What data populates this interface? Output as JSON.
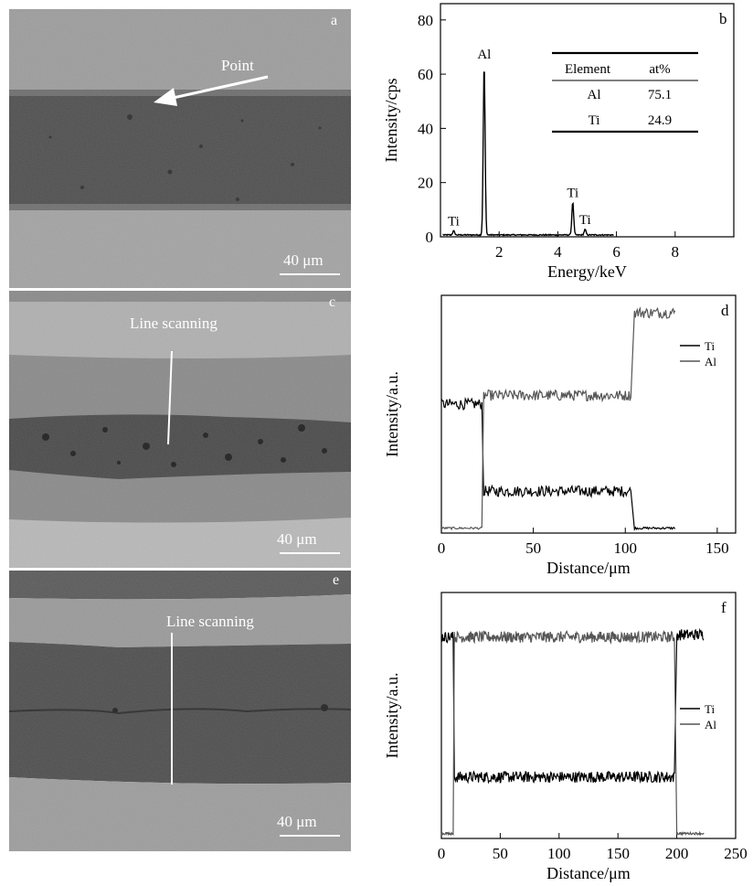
{
  "panels": {
    "a": {
      "label": "a",
      "annotation": "Point",
      "scale_bar": "40 μm"
    },
    "c": {
      "label": "c",
      "annotation": "Line scanning",
      "scale_bar": "40 μm"
    },
    "e": {
      "label": "e",
      "annotation": "Line scanning",
      "scale_bar": "40 μm"
    }
  },
  "chart_data": [
    {
      "id": "b",
      "type": "line",
      "panel_label": "b",
      "xlabel": "Energy/keV",
      "ylabel": "Intensity/cps",
      "xlim": [
        0,
        10
      ],
      "ylim": [
        0,
        86
      ],
      "xticks": [
        2,
        4,
        6,
        8
      ],
      "yticks": [
        0,
        20,
        40,
        60,
        80
      ],
      "peaks": [
        {
          "label": "Ti",
          "x": 0.45,
          "y": 1.5
        },
        {
          "label": "Al",
          "x": 1.49,
          "y": 63
        },
        {
          "label": "Ti",
          "x": 4.51,
          "y": 12
        },
        {
          "label": "Ti",
          "x": 4.93,
          "y": 2
        }
      ],
      "table": {
        "columns": [
          "Element",
          "at%"
        ],
        "rows": [
          [
            "Al",
            "75.1"
          ],
          [
            "Ti",
            "24.9"
          ]
        ]
      }
    },
    {
      "id": "d",
      "type": "line",
      "panel_label": "d",
      "xlabel": "Distance/μm",
      "ylabel": "Intensity/a.u.",
      "xlim": [
        0,
        160
      ],
      "xticks": [
        0,
        50,
        100,
        150
      ],
      "legend": "top-right",
      "series": [
        {
          "name": "Ti",
          "color": "#000000",
          "segments": [
            [
              0,
              22,
              0.58
            ],
            [
              23,
              103,
              0.18
            ],
            [
              105,
              127,
              0.01
            ]
          ]
        },
        {
          "name": "Al",
          "color": "#555555",
          "segments": [
            [
              0,
              22,
              0.01
            ],
            [
              23,
              103,
              0.62
            ],
            [
              105,
              127,
              1.0
            ]
          ]
        }
      ]
    },
    {
      "id": "f",
      "type": "line",
      "panel_label": "f",
      "xlabel": "Distance/μm",
      "ylabel": "Intensity/a.u.",
      "xlim": [
        0,
        250
      ],
      "xticks": [
        0,
        50,
        100,
        150,
        200,
        250
      ],
      "legend": "right",
      "series": [
        {
          "name": "Ti",
          "color": "#000000",
          "segments": [
            [
              0,
              10,
              0.88
            ],
            [
              11,
              198,
              0.26
            ],
            [
              200,
              223,
              0.89
            ]
          ]
        },
        {
          "name": "Al",
          "color": "#555555",
          "segments": [
            [
              0,
              10,
              0.01
            ],
            [
              11,
              198,
              0.88
            ],
            [
              200,
              223,
              0.01
            ]
          ]
        }
      ]
    }
  ]
}
